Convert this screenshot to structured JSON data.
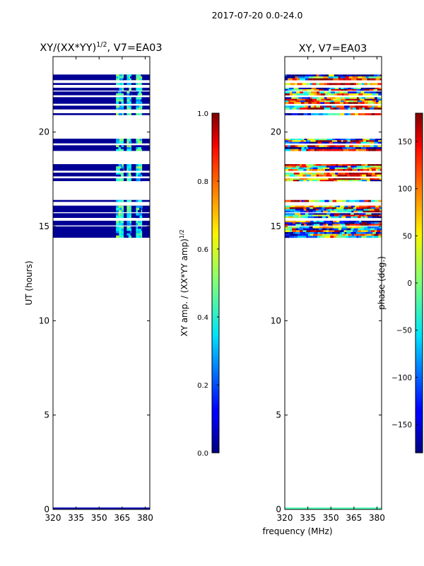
{
  "figure": {
    "suptitle": "2017-07-20 0.0-24.0",
    "shared_xlabel": "frequency (MHz)"
  },
  "chart_data": [
    {
      "type": "heatmap",
      "title_main": "XY/(XX*YY)",
      "title_sup": "1/2",
      "title_tail": ", V7=EA03",
      "xlabel": "",
      "ylabel": "UT (hours)",
      "xlim": [
        320,
        383
      ],
      "ylim": [
        0,
        24
      ],
      "xticks": [
        320,
        335,
        350,
        365,
        380
      ],
      "yticks": [
        0,
        5,
        10,
        15,
        20
      ],
      "colormap": "jet",
      "colorbar": {
        "label_main": "XY amp. / (XX*YY amp)",
        "label_sup": "1/2",
        "range": [
          0.0,
          1.0
        ],
        "ticks": [
          "0.0",
          "0.2",
          "0.4",
          "0.6",
          "0.8",
          "1.0"
        ]
      },
      "data_bands_ut": [
        [
          14.4,
          15.0
        ],
        [
          15.05,
          15.3
        ],
        [
          15.45,
          15.7
        ],
        [
          15.75,
          16.1
        ],
        [
          16.3,
          16.4
        ],
        [
          17.4,
          17.55
        ],
        [
          17.65,
          17.85
        ],
        [
          17.95,
          18.3
        ],
        [
          19.0,
          19.3
        ],
        [
          19.4,
          19.65
        ],
        [
          20.9,
          21.0
        ],
        [
          21.2,
          21.4
        ],
        [
          21.5,
          21.85
        ],
        [
          21.95,
          22.15
        ],
        [
          22.2,
          22.35
        ],
        [
          22.5,
          22.6
        ],
        [
          22.75,
          23.05
        ]
      ],
      "bright_channels_mhz": [
        [
          361,
          366
        ],
        [
          368,
          371
        ],
        [
          374,
          378
        ]
      ],
      "background_value": 0.02,
      "bright_value_range": [
        0.25,
        0.55
      ]
    },
    {
      "type": "heatmap",
      "title": "XY, V7=EA03",
      "xlabel": "",
      "ylabel": "",
      "xlim": [
        320,
        383
      ],
      "ylim": [
        0,
        24
      ],
      "xticks": [
        320,
        335,
        350,
        365,
        380
      ],
      "yticks": [
        0,
        5,
        10,
        15,
        20
      ],
      "colormap": "jet",
      "colorbar": {
        "label": "phase (deg.)",
        "range": [
          -180,
          180
        ],
        "ticks": [
          "−150",
          "−100",
          "−50",
          "0",
          "50",
          "100",
          "150"
        ],
        "tick_values": [
          -150,
          -100,
          -50,
          0,
          50,
          100,
          150
        ]
      },
      "data_bands_ut": [
        [
          14.4,
          15.0
        ],
        [
          15.05,
          15.3
        ],
        [
          15.45,
          15.7
        ],
        [
          15.75,
          16.1
        ],
        [
          16.3,
          16.4
        ],
        [
          17.4,
          17.55
        ],
        [
          17.65,
          17.85
        ],
        [
          17.95,
          18.3
        ],
        [
          19.0,
          19.3
        ],
        [
          19.4,
          19.65
        ],
        [
          20.9,
          21.0
        ],
        [
          21.2,
          21.4
        ],
        [
          21.5,
          21.85
        ],
        [
          21.95,
          22.15
        ],
        [
          22.2,
          22.35
        ],
        [
          22.5,
          22.6
        ],
        [
          22.75,
          23.05
        ]
      ],
      "phase_value_range": [
        -180,
        180
      ]
    }
  ]
}
